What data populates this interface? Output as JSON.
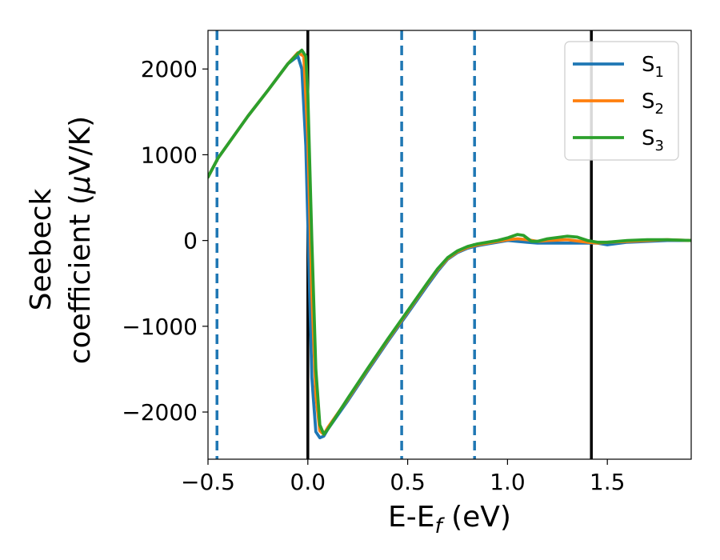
{
  "chart_data": {
    "type": "line",
    "title": "",
    "xlabel": {
      "base": "E-E",
      "sub": "f",
      "tail": " (eV)"
    },
    "ylabel": {
      "line1": "Seebeck",
      "line2_prefix": "coefficient  (",
      "mu": "μ",
      "line2_suffix": "V/K)"
    },
    "xlim": [
      -0.5,
      1.92
    ],
    "ylim": [
      -2550,
      2450
    ],
    "xticks": [
      {
        "value": -0.5,
        "label": "−0.5"
      },
      {
        "value": 0.0,
        "label": "0.0"
      },
      {
        "value": 0.5,
        "label": "0.5"
      },
      {
        "value": 1.0,
        "label": "1.0"
      },
      {
        "value": 1.5,
        "label": "1.5"
      }
    ],
    "yticks": [
      {
        "value": 2000,
        "label": "2000"
      },
      {
        "value": 1000,
        "label": "1000"
      },
      {
        "value": 0,
        "label": "0"
      },
      {
        "value": -1000,
        "label": "−1000"
      },
      {
        "value": -2000,
        "label": "−2000"
      }
    ],
    "grid": false,
    "legend_position": "top-right",
    "vlines": [
      {
        "x": 0.0,
        "style": "solid",
        "color": "#000000"
      },
      {
        "x": 1.42,
        "style": "solid",
        "color": "#000000"
      },
      {
        "x": -0.455,
        "style": "dashed",
        "color": "#1f77b4"
      },
      {
        "x": 0.47,
        "style": "dashed",
        "color": "#1f77b4"
      },
      {
        "x": 0.835,
        "style": "dashed",
        "color": "#1f77b4"
      }
    ],
    "series": [
      {
        "name": "S",
        "sub": "1",
        "color": "#1f77b4",
        "x": [
          -0.5,
          -0.45,
          -0.3,
          -0.2,
          -0.1,
          -0.05,
          -0.03,
          -0.01,
          0.0,
          0.02,
          0.04,
          0.06,
          0.08,
          0.1,
          0.2,
          0.3,
          0.4,
          0.5,
          0.6,
          0.65,
          0.7,
          0.75,
          0.8,
          0.85,
          0.9,
          0.95,
          1.0,
          1.05,
          1.1,
          1.15,
          1.2,
          1.3,
          1.4,
          1.45,
          1.5,
          1.6,
          1.7,
          1.8,
          1.92
        ],
        "y": [
          740,
          960,
          1450,
          1750,
          2060,
          2150,
          2000,
          1100,
          200,
          -1600,
          -2230,
          -2300,
          -2280,
          -2200,
          -1870,
          -1520,
          -1180,
          -850,
          -520,
          -360,
          -220,
          -140,
          -90,
          -60,
          -40,
          -20,
          0,
          -10,
          -20,
          -30,
          -30,
          -30,
          -30,
          -30,
          -50,
          -20,
          -10,
          0,
          0
        ]
      },
      {
        "name": "S",
        "sub": "2",
        "color": "#ff7f0e",
        "x": [
          -0.5,
          -0.45,
          -0.3,
          -0.2,
          -0.1,
          -0.05,
          -0.02,
          0.0,
          0.02,
          0.04,
          0.06,
          0.08,
          0.1,
          0.2,
          0.3,
          0.4,
          0.5,
          0.6,
          0.65,
          0.7,
          0.75,
          0.8,
          0.85,
          0.9,
          0.95,
          1.0,
          1.05,
          1.1,
          1.15,
          1.2,
          1.3,
          1.4,
          1.45,
          1.5,
          1.6,
          1.7,
          1.8,
          1.92
        ],
        "y": [
          740,
          960,
          1450,
          1750,
          2060,
          2190,
          2150,
          1200,
          -600,
          -1800,
          -2220,
          -2260,
          -2180,
          -1850,
          -1500,
          -1160,
          -830,
          -500,
          -340,
          -210,
          -130,
          -80,
          -50,
          -30,
          -10,
          10,
          20,
          10,
          -10,
          0,
          10,
          -20,
          -30,
          -20,
          -10,
          0,
          10,
          0
        ]
      },
      {
        "name": "S",
        "sub": "3",
        "color": "#2ca02c",
        "x": [
          -0.5,
          -0.45,
          -0.3,
          -0.2,
          -0.1,
          -0.05,
          -0.03,
          -0.01,
          0.0,
          0.02,
          0.04,
          0.06,
          0.08,
          0.1,
          0.2,
          0.3,
          0.4,
          0.5,
          0.6,
          0.65,
          0.7,
          0.75,
          0.8,
          0.85,
          0.9,
          0.95,
          1.0,
          1.05,
          1.08,
          1.12,
          1.15,
          1.2,
          1.3,
          1.35,
          1.4,
          1.45,
          1.5,
          1.6,
          1.7,
          1.8,
          1.92
        ],
        "y": [
          740,
          960,
          1450,
          1750,
          2060,
          2180,
          2220,
          2150,
          1700,
          0,
          -1500,
          -2150,
          -2260,
          -2200,
          -1840,
          -1490,
          -1150,
          -820,
          -490,
          -330,
          -200,
          -120,
          -70,
          -40,
          -20,
          0,
          30,
          70,
          60,
          -10,
          -10,
          20,
          50,
          40,
          0,
          -20,
          -20,
          0,
          10,
          10,
          0
        ]
      }
    ]
  }
}
